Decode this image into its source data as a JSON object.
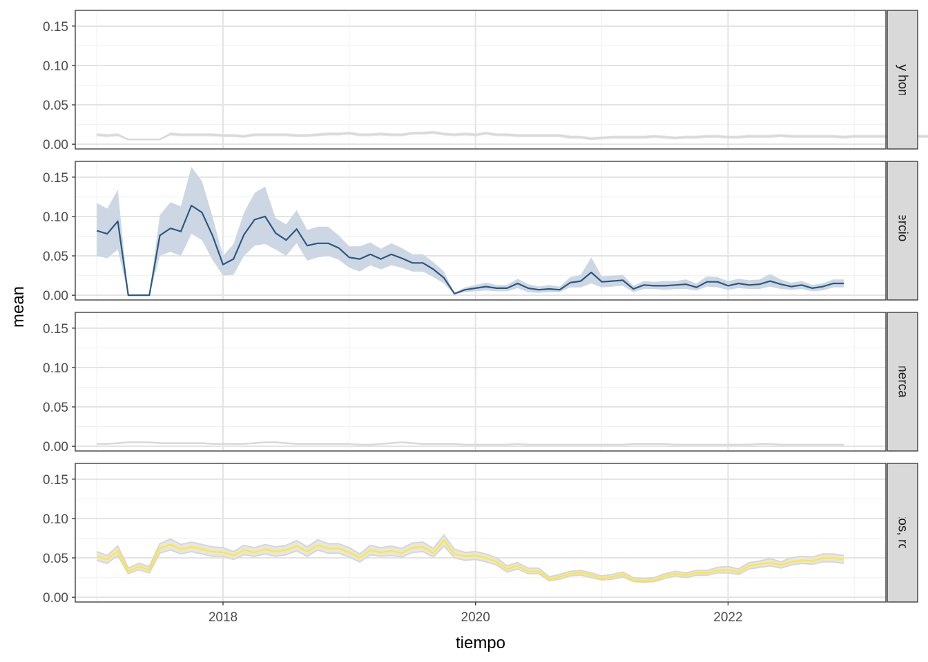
{
  "chart_data": {
    "type": "line",
    "xlabel": "tiempo",
    "ylabel": "mean",
    "x_ticks": [
      "2018",
      "2020",
      "2022"
    ],
    "x_tick_values": [
      2018,
      2020,
      2022
    ],
    "xlim": [
      2016.83,
      2023.25
    ],
    "ylim": [
      -0.006,
      0.17
    ],
    "y_ticks": [
      0.0,
      0.05,
      0.1,
      0.15
    ],
    "y_tick_labels": [
      "0.00",
      "0.05",
      "0.10",
      "0.15"
    ],
    "grid": true,
    "legend": "none",
    "facet_layout": "rows, strip labels on right",
    "x_start": 2017.0,
    "x_step_months": 1,
    "panels": [
      {
        "label": "Armas y homicidios",
        "line_color": "#d9d9d9",
        "ribbon_color": "#e6e6e6",
        "mean": [
          0.012,
          0.011,
          0.012,
          0.006,
          0.006,
          0.006,
          0.006,
          0.013,
          0.012,
          0.012,
          0.012,
          0.012,
          0.011,
          0.011,
          0.01,
          0.012,
          0.012,
          0.012,
          0.012,
          0.011,
          0.011,
          0.012,
          0.013,
          0.013,
          0.014,
          0.012,
          0.012,
          0.013,
          0.012,
          0.012,
          0.014,
          0.014,
          0.015,
          0.013,
          0.012,
          0.013,
          0.012,
          0.014,
          0.012,
          0.012,
          0.011,
          0.011,
          0.011,
          0.011,
          0.011,
          0.009,
          0.009,
          0.007,
          0.008,
          0.009,
          0.009,
          0.009,
          0.009,
          0.01,
          0.009,
          0.008,
          0.009,
          0.009,
          0.01,
          0.01,
          0.009,
          0.009,
          0.01,
          0.01,
          0.01,
          0.011,
          0.01,
          0.01,
          0.01,
          0.01,
          0.01,
          0.009,
          0.01,
          0.01,
          0.01,
          0.01,
          0.01,
          0.01,
          0.01,
          0.01,
          0.01,
          0.01,
          0.01,
          0.01,
          0.01,
          0.01,
          0.01,
          0.01,
          0.01,
          0.01,
          0.01,
          0.01
        ],
        "lower": [
          0.01,
          0.009,
          0.01,
          0.005,
          0.005,
          0.005,
          0.005,
          0.011,
          0.01,
          0.01,
          0.01,
          0.01,
          0.009,
          0.009,
          0.008,
          0.01,
          0.01,
          0.01,
          0.01,
          0.009,
          0.009,
          0.01,
          0.011,
          0.011,
          0.012,
          0.01,
          0.01,
          0.011,
          0.01,
          0.01,
          0.012,
          0.012,
          0.013,
          0.011,
          0.01,
          0.011,
          0.01,
          0.012,
          0.01,
          0.01,
          0.009,
          0.009,
          0.009,
          0.009,
          0.009,
          0.007,
          0.007,
          0.005,
          0.006,
          0.007,
          0.007,
          0.007,
          0.007,
          0.008,
          0.007,
          0.006,
          0.007,
          0.007,
          0.008,
          0.008,
          0.007,
          0.007,
          0.008,
          0.008,
          0.008,
          0.009,
          0.008,
          0.008,
          0.008,
          0.008,
          0.008,
          0.007,
          0.008,
          0.008,
          0.008,
          0.008,
          0.008,
          0.008,
          0.008,
          0.008,
          0.008,
          0.008,
          0.008,
          0.008,
          0.008,
          0.008,
          0.008,
          0.008,
          0.008,
          0.008,
          0.008,
          0.008
        ],
        "upper": [
          0.014,
          0.013,
          0.014,
          0.007,
          0.007,
          0.007,
          0.007,
          0.015,
          0.014,
          0.014,
          0.014,
          0.014,
          0.013,
          0.013,
          0.012,
          0.014,
          0.014,
          0.014,
          0.014,
          0.013,
          0.013,
          0.014,
          0.015,
          0.015,
          0.016,
          0.014,
          0.014,
          0.015,
          0.014,
          0.014,
          0.016,
          0.016,
          0.017,
          0.015,
          0.014,
          0.015,
          0.014,
          0.016,
          0.014,
          0.014,
          0.013,
          0.013,
          0.013,
          0.013,
          0.013,
          0.011,
          0.011,
          0.009,
          0.01,
          0.011,
          0.011,
          0.011,
          0.011,
          0.012,
          0.011,
          0.01,
          0.011,
          0.011,
          0.012,
          0.012,
          0.011,
          0.011,
          0.012,
          0.012,
          0.012,
          0.013,
          0.012,
          0.012,
          0.012,
          0.012,
          0.012,
          0.011,
          0.012,
          0.012,
          0.012,
          0.012,
          0.012,
          0.012,
          0.012,
          0.012,
          0.012,
          0.012,
          0.012,
          0.012,
          0.012,
          0.012,
          0.012,
          0.012,
          0.012,
          0.012,
          0.012,
          0.012
        ]
      },
      {
        "label": "Comercio ilegal",
        "line_color": "#2a5783",
        "ribbon_color": "#ccd7e3",
        "mean": [
          0.082,
          0.078,
          0.094,
          0.0,
          0.0,
          0.0,
          0.076,
          0.085,
          0.081,
          0.114,
          0.105,
          0.076,
          0.039,
          0.046,
          0.077,
          0.096,
          0.1,
          0.079,
          0.07,
          0.084,
          0.063,
          0.066,
          0.066,
          0.06,
          0.048,
          0.046,
          0.052,
          0.046,
          0.052,
          0.047,
          0.041,
          0.041,
          0.033,
          0.022,
          0.002,
          0.007,
          0.009,
          0.011,
          0.009,
          0.009,
          0.015,
          0.009,
          0.007,
          0.008,
          0.007,
          0.016,
          0.018,
          0.029,
          0.017,
          0.018,
          0.019,
          0.008,
          0.013,
          0.012,
          0.012,
          0.013,
          0.014,
          0.01,
          0.017,
          0.017,
          0.012,
          0.015,
          0.013,
          0.014,
          0.018,
          0.014,
          0.011,
          0.013,
          0.009,
          0.011,
          0.015,
          0.015
        ],
        "lower": [
          0.05,
          0.047,
          0.058,
          0.0,
          0.0,
          0.0,
          0.05,
          0.055,
          0.05,
          0.078,
          0.07,
          0.045,
          0.025,
          0.026,
          0.05,
          0.063,
          0.065,
          0.058,
          0.05,
          0.066,
          0.044,
          0.048,
          0.05,
          0.045,
          0.035,
          0.03,
          0.038,
          0.033,
          0.038,
          0.035,
          0.03,
          0.03,
          0.023,
          0.015,
          0.001,
          0.004,
          0.005,
          0.006,
          0.005,
          0.005,
          0.009,
          0.004,
          0.003,
          0.004,
          0.004,
          0.01,
          0.01,
          0.015,
          0.01,
          0.011,
          0.012,
          0.004,
          0.008,
          0.008,
          0.007,
          0.008,
          0.008,
          0.006,
          0.011,
          0.01,
          0.007,
          0.009,
          0.008,
          0.008,
          0.011,
          0.008,
          0.007,
          0.008,
          0.005,
          0.006,
          0.01,
          0.01
        ],
        "upper": [
          0.117,
          0.11,
          0.134,
          0.0,
          0.0,
          0.0,
          0.102,
          0.118,
          0.113,
          0.163,
          0.145,
          0.1,
          0.05,
          0.065,
          0.105,
          0.13,
          0.138,
          0.098,
          0.09,
          0.108,
          0.083,
          0.087,
          0.087,
          0.076,
          0.062,
          0.062,
          0.067,
          0.059,
          0.066,
          0.06,
          0.052,
          0.052,
          0.042,
          0.03,
          0.003,
          0.01,
          0.013,
          0.016,
          0.013,
          0.013,
          0.021,
          0.014,
          0.011,
          0.013,
          0.011,
          0.023,
          0.026,
          0.048,
          0.024,
          0.025,
          0.026,
          0.012,
          0.018,
          0.017,
          0.018,
          0.018,
          0.02,
          0.015,
          0.024,
          0.023,
          0.018,
          0.021,
          0.019,
          0.02,
          0.027,
          0.02,
          0.016,
          0.018,
          0.013,
          0.015,
          0.02,
          0.02
        ]
      },
      {
        "label": "Economías y mercados criminales",
        "line_color": "#d9d9d9",
        "ribbon_color": "#e6e6e6",
        "mean": [
          0.003,
          0.003,
          0.004,
          0.005,
          0.005,
          0.005,
          0.004,
          0.004,
          0.004,
          0.004,
          0.004,
          0.003,
          0.003,
          0.003,
          0.003,
          0.004,
          0.005,
          0.005,
          0.004,
          0.003,
          0.003,
          0.003,
          0.003,
          0.003,
          0.003,
          0.002,
          0.002,
          0.003,
          0.004,
          0.005,
          0.004,
          0.003,
          0.003,
          0.003,
          0.003,
          0.002,
          0.002,
          0.002,
          0.002,
          0.002,
          0.003,
          0.002,
          0.002,
          0.002,
          0.002,
          0.002,
          0.002,
          0.002,
          0.002,
          0.002,
          0.002,
          0.003,
          0.003,
          0.003,
          0.003,
          0.002,
          0.002,
          0.002,
          0.002,
          0.002,
          0.002,
          0.002,
          0.002,
          0.003,
          0.003,
          0.002,
          0.002,
          0.002,
          0.002,
          0.002,
          0.002,
          0.002
        ],
        "lower": [
          0.002,
          0.002,
          0.003,
          0.004,
          0.004,
          0.004,
          0.003,
          0.003,
          0.003,
          0.003,
          0.003,
          0.002,
          0.002,
          0.002,
          0.002,
          0.003,
          0.004,
          0.004,
          0.003,
          0.002,
          0.002,
          0.002,
          0.002,
          0.002,
          0.002,
          0.001,
          0.001,
          0.002,
          0.003,
          0.004,
          0.003,
          0.002,
          0.002,
          0.002,
          0.002,
          0.001,
          0.001,
          0.001,
          0.001,
          0.001,
          0.002,
          0.001,
          0.001,
          0.001,
          0.001,
          0.001,
          0.001,
          0.001,
          0.001,
          0.001,
          0.001,
          0.002,
          0.002,
          0.002,
          0.002,
          0.001,
          0.001,
          0.001,
          0.001,
          0.001,
          0.001,
          0.001,
          0.001,
          0.002,
          0.002,
          0.001,
          0.001,
          0.001,
          0.001,
          0.001,
          0.001,
          0.001
        ],
        "upper": [
          0.004,
          0.004,
          0.005,
          0.006,
          0.006,
          0.006,
          0.005,
          0.005,
          0.005,
          0.005,
          0.005,
          0.004,
          0.004,
          0.004,
          0.004,
          0.005,
          0.006,
          0.006,
          0.005,
          0.004,
          0.004,
          0.004,
          0.004,
          0.004,
          0.004,
          0.003,
          0.003,
          0.004,
          0.005,
          0.006,
          0.005,
          0.004,
          0.004,
          0.004,
          0.004,
          0.003,
          0.003,
          0.003,
          0.003,
          0.003,
          0.004,
          0.003,
          0.003,
          0.003,
          0.003,
          0.003,
          0.003,
          0.003,
          0.003,
          0.003,
          0.003,
          0.004,
          0.004,
          0.004,
          0.004,
          0.003,
          0.003,
          0.003,
          0.003,
          0.003,
          0.003,
          0.003,
          0.003,
          0.004,
          0.004,
          0.003,
          0.003,
          0.003,
          0.003,
          0.003,
          0.003,
          0.003
        ]
      },
      {
        "label": "Hurtos, robos",
        "line_color": "#ffe933",
        "ribbon_color": "#e6e6e6",
        "mean": [
          0.052,
          0.048,
          0.059,
          0.033,
          0.039,
          0.035,
          0.062,
          0.067,
          0.061,
          0.064,
          0.061,
          0.058,
          0.057,
          0.053,
          0.06,
          0.057,
          0.061,
          0.058,
          0.06,
          0.065,
          0.058,
          0.066,
          0.062,
          0.062,
          0.057,
          0.05,
          0.06,
          0.057,
          0.059,
          0.056,
          0.063,
          0.064,
          0.056,
          0.072,
          0.055,
          0.052,
          0.053,
          0.05,
          0.045,
          0.036,
          0.04,
          0.033,
          0.033,
          0.023,
          0.026,
          0.03,
          0.031,
          0.028,
          0.024,
          0.026,
          0.029,
          0.022,
          0.021,
          0.022,
          0.027,
          0.03,
          0.028,
          0.031,
          0.031,
          0.034,
          0.035,
          0.032,
          0.04,
          0.042,
          0.044,
          0.041,
          0.045,
          0.047,
          0.046,
          0.05,
          0.05,
          0.048
        ],
        "lower": [
          0.047,
          0.043,
          0.053,
          0.03,
          0.035,
          0.031,
          0.056,
          0.06,
          0.055,
          0.058,
          0.055,
          0.052,
          0.052,
          0.048,
          0.054,
          0.052,
          0.055,
          0.052,
          0.054,
          0.059,
          0.052,
          0.06,
          0.056,
          0.056,
          0.051,
          0.045,
          0.054,
          0.052,
          0.053,
          0.051,
          0.057,
          0.058,
          0.051,
          0.065,
          0.05,
          0.047,
          0.048,
          0.045,
          0.041,
          0.032,
          0.036,
          0.03,
          0.03,
          0.021,
          0.023,
          0.027,
          0.028,
          0.025,
          0.022,
          0.023,
          0.026,
          0.02,
          0.019,
          0.02,
          0.024,
          0.027,
          0.025,
          0.028,
          0.028,
          0.031,
          0.031,
          0.029,
          0.036,
          0.038,
          0.04,
          0.037,
          0.041,
          0.043,
          0.042,
          0.045,
          0.045,
          0.043
        ],
        "upper": [
          0.058,
          0.053,
          0.065,
          0.037,
          0.043,
          0.039,
          0.068,
          0.074,
          0.067,
          0.07,
          0.067,
          0.064,
          0.063,
          0.058,
          0.066,
          0.063,
          0.067,
          0.064,
          0.066,
          0.072,
          0.064,
          0.073,
          0.068,
          0.068,
          0.063,
          0.055,
          0.066,
          0.063,
          0.065,
          0.062,
          0.069,
          0.07,
          0.062,
          0.079,
          0.061,
          0.057,
          0.058,
          0.055,
          0.05,
          0.04,
          0.044,
          0.037,
          0.037,
          0.026,
          0.029,
          0.033,
          0.034,
          0.031,
          0.027,
          0.029,
          0.032,
          0.025,
          0.024,
          0.025,
          0.03,
          0.033,
          0.031,
          0.034,
          0.034,
          0.038,
          0.039,
          0.036,
          0.044,
          0.046,
          0.049,
          0.045,
          0.05,
          0.052,
          0.051,
          0.055,
          0.055,
          0.053
        ]
      }
    ]
  }
}
